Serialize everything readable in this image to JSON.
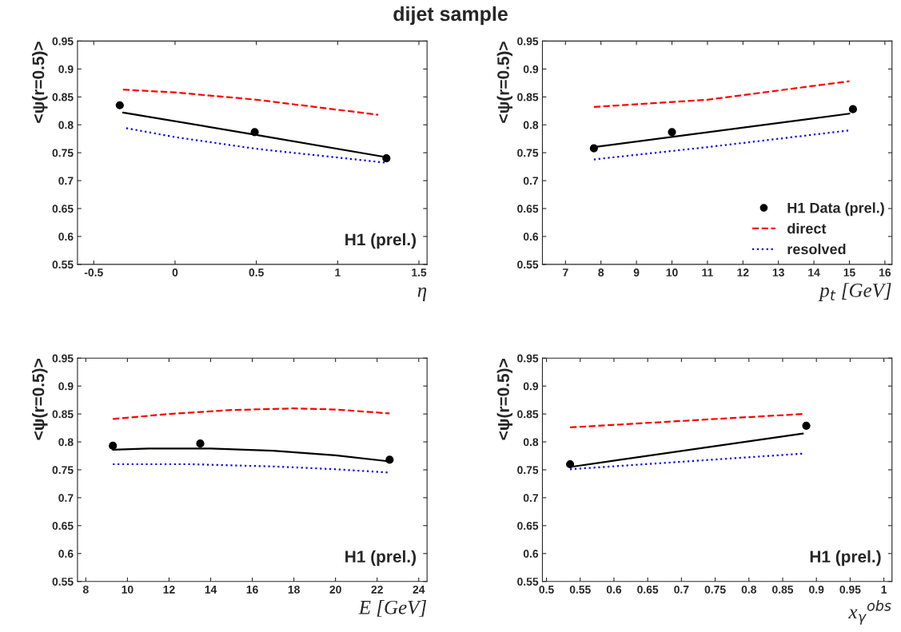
{
  "chart_data": [
    {
      "type": "line",
      "title": "dijet sample",
      "xlabel": "η",
      "ylabel": "<ψ(r=0.5)>",
      "xlim": [
        -0.6,
        1.55
      ],
      "xticks": [
        -0.5,
        0,
        0.5,
        1,
        1.5
      ],
      "ylim": [
        0.55,
        0.95
      ],
      "yticks": [
        0.55,
        0.6,
        0.65,
        0.7,
        0.75,
        0.8,
        0.85,
        0.9,
        0.95
      ],
      "grid": false,
      "annotations": [
        "H1 (prel.)"
      ],
      "series": [
        {
          "type": "scatter",
          "marker": "circle",
          "color": "#000000",
          "x": [
            -0.34,
            0.49,
            1.3
          ],
          "values": [
            0.835,
            0.787,
            0.74
          ]
        },
        {
          "line_style": "solid",
          "color": "#000000",
          "x": [
            -0.32,
            0.5,
            1.3
          ],
          "values": [
            0.822,
            0.782,
            0.742
          ]
        },
        {
          "line_style": "dashed",
          "color": "#ff0000",
          "x": [
            -0.32,
            0,
            0.5,
            1.25
          ],
          "values": [
            0.863,
            0.858,
            0.845,
            0.818
          ]
        },
        {
          "line_style": "dotted",
          "color": "#0000ff",
          "x": [
            -0.3,
            0,
            0.5,
            1.3
          ],
          "values": [
            0.794,
            0.778,
            0.757,
            0.732
          ]
        }
      ]
    },
    {
      "type": "line",
      "xlabel": "p$_{t}$ [GeV]",
      "ylabel": "<ψ(r=0.5)>",
      "xlim": [
        6.35,
        16.2
      ],
      "xticks": [
        7,
        8,
        9,
        10,
        11,
        12,
        13,
        14,
        15,
        16
      ],
      "ylim": [
        0.55,
        0.95
      ],
      "yticks": [
        0.55,
        0.6,
        0.65,
        0.7,
        0.75,
        0.8,
        0.85,
        0.9,
        0.95
      ],
      "grid": false,
      "legend": "bottom right",
      "series": [
        {
          "name": "H1 Data (prel.)",
          "type": "scatter",
          "marker": "circle",
          "color": "#000000",
          "x": [
            7.8,
            10,
            15.1
          ],
          "values": [
            0.758,
            0.787,
            0.828
          ]
        },
        {
          "line_style": "solid",
          "color": "#000000",
          "x": [
            7.8,
            15
          ],
          "values": [
            0.76,
            0.82
          ]
        },
        {
          "name": "direct",
          "line_style": "dashed",
          "color": "#ff0000",
          "x": [
            7.8,
            11,
            15
          ],
          "values": [
            0.832,
            0.845,
            0.878
          ]
        },
        {
          "name": "resolved",
          "line_style": "dotted",
          "color": "#0000ff",
          "x": [
            7.8,
            11,
            15
          ],
          "values": [
            0.738,
            0.76,
            0.79
          ]
        }
      ]
    },
    {
      "type": "line",
      "xlabel": "E [GeV]",
      "ylabel": "<ψ(r=0.5)>",
      "xlim": [
        7.6,
        24.4
      ],
      "xticks": [
        8,
        10,
        12,
        14,
        16,
        18,
        20,
        22,
        24
      ],
      "ylim": [
        0.55,
        0.95
      ],
      "yticks": [
        0.55,
        0.6,
        0.65,
        0.7,
        0.75,
        0.8,
        0.85,
        0.9,
        0.95
      ],
      "grid": false,
      "annotations": [
        "H1 (prel.)"
      ],
      "series": [
        {
          "type": "scatter",
          "marker": "circle",
          "color": "#000000",
          "x": [
            9.3,
            13.5,
            22.6
          ],
          "values": [
            0.793,
            0.797,
            0.768
          ]
        },
        {
          "line_style": "solid",
          "color": "#000000",
          "x": [
            9.3,
            11,
            14,
            17,
            20,
            22.6
          ],
          "values": [
            0.786,
            0.788,
            0.788,
            0.784,
            0.776,
            0.765
          ]
        },
        {
          "line_style": "dashed",
          "color": "#ff0000",
          "x": [
            9.3,
            12,
            15,
            18,
            20,
            22.6
          ],
          "values": [
            0.841,
            0.85,
            0.857,
            0.86,
            0.858,
            0.851
          ]
        },
        {
          "line_style": "dotted",
          "color": "#0000ff",
          "x": [
            9.3,
            13,
            17,
            20,
            22.6
          ],
          "values": [
            0.76,
            0.76,
            0.756,
            0.751,
            0.745
          ]
        }
      ]
    },
    {
      "type": "line",
      "xlabel": "x$_{γ}$$^{obs}$",
      "ylabel": "<ψ(r=0.5)>",
      "xlim": [
        0.494,
        1.012
      ],
      "xticks": [
        0.5,
        0.55,
        0.6,
        0.65,
        0.7,
        0.75,
        0.8,
        0.85,
        0.9,
        0.95,
        1
      ],
      "ylim": [
        0.55,
        0.95
      ],
      "yticks": [
        0.55,
        0.6,
        0.65,
        0.7,
        0.75,
        0.8,
        0.85,
        0.9,
        0.95
      ],
      "grid": false,
      "annotations": [
        "H1 (prel.)"
      ],
      "series": [
        {
          "type": "scatter",
          "marker": "circle",
          "color": "#000000",
          "x": [
            0.535,
            0.885
          ],
          "values": [
            0.76,
            0.829
          ]
        },
        {
          "line_style": "solid",
          "color": "#000000",
          "x": [
            0.535,
            0.88
          ],
          "values": [
            0.755,
            0.815
          ]
        },
        {
          "line_style": "dashed",
          "color": "#ff0000",
          "x": [
            0.535,
            0.88
          ],
          "values": [
            0.826,
            0.85
          ]
        },
        {
          "line_style": "dotted",
          "color": "#0000ff",
          "x": [
            0.535,
            0.88
          ],
          "values": [
            0.751,
            0.779
          ]
        }
      ]
    }
  ]
}
